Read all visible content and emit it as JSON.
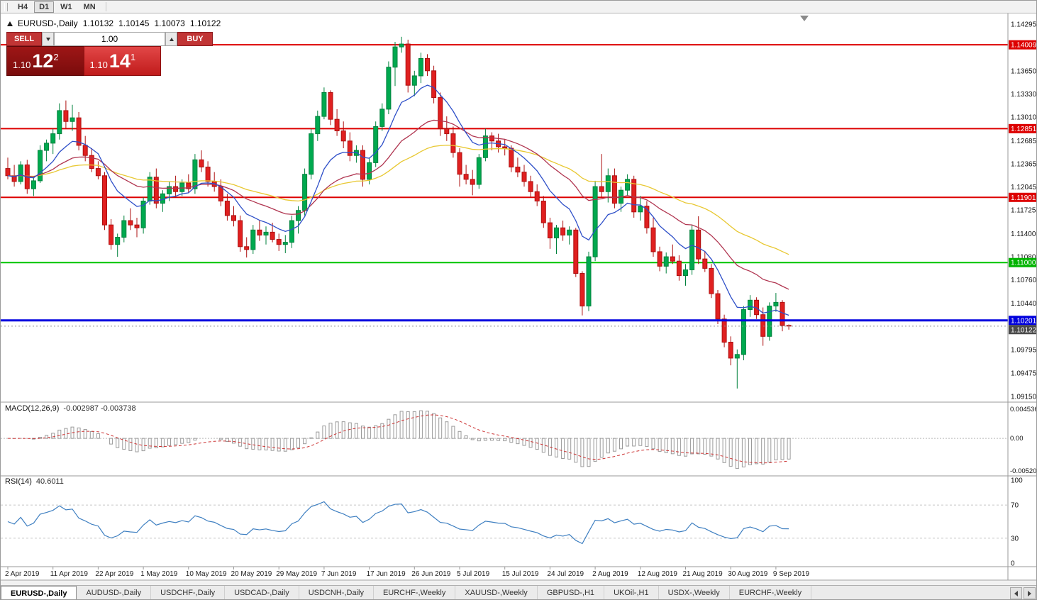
{
  "toolbar": {
    "timeframes": [
      "H4",
      "D1",
      "W1",
      "MN"
    ],
    "active": "D1"
  },
  "chart_header": {
    "title": "EURUSD-,Daily",
    "open": "1.10132",
    "high": "1.10145",
    "low": "1.10073",
    "close": "1.10122"
  },
  "one_click": {
    "sell_label": "SELL",
    "buy_label": "BUY",
    "volume": "1.00",
    "bid": {
      "whole": "1.10",
      "pips": "12",
      "frac": "2"
    },
    "ask": {
      "whole": "1.10",
      "pips": "14",
      "frac": "1"
    }
  },
  "price_axis": {
    "ticks": [
      "1.14295",
      "1.13650",
      "1.13330",
      "1.13010",
      "1.12685",
      "1.12365",
      "1.12045",
      "1.11725",
      "1.11400",
      "1.11080",
      "1.10760",
      "1.10440",
      "1.09795",
      "1.09475",
      "1.09150"
    ],
    "badges": [
      {
        "label": "1.14009",
        "color": "#DD0000"
      },
      {
        "label": "1.12851",
        "color": "#DD0000"
      },
      {
        "label": "1.11901",
        "color": "#DD0000"
      },
      {
        "label": "1.11000",
        "color": "#00B400"
      },
      {
        "label": "1.10201",
        "color": "#0000DD"
      },
      {
        "label": "1.10122",
        "color": "#4A4A4A"
      }
    ]
  },
  "indicators": {
    "macd": {
      "label": "MACD(12,26,9)",
      "values": "-0.002987 -0.003738",
      "axis_labels": [
        "0.004536",
        "0.00",
        "-0.005205"
      ]
    },
    "rsi": {
      "label": "RSI(14)",
      "value": "40.6011",
      "axis_labels": [
        "100",
        "70",
        "30",
        "0"
      ]
    }
  },
  "tabs": {
    "active_index": 0,
    "items": [
      "EURUSD-,Daily",
      "AUDUSD-,Daily",
      "USDCHF-,Daily",
      "USDCAD-,Daily",
      "USDCNH-,Daily",
      "EURCHF-,Weekly",
      "XAUUSD-,Weekly",
      "GBPUSD-,H1",
      "UKOil-,H1",
      "USDX-,Weekly",
      "EURCHF-,Weekly"
    ]
  },
  "chart_data": {
    "type": "candlestick",
    "symbol": "EURUSD-",
    "timeframe": "Daily",
    "y_range": [
      1.0915,
      1.14295
    ],
    "x_labels": [
      "2 Apr 2019",
      "11 Apr 2019",
      "22 Apr 2019",
      "1 May 2019",
      "10 May 2019",
      "20 May 2019",
      "29 May 2019",
      "7 Jun 2019",
      "17 Jun 2019",
      "26 Jun 2019",
      "5 Jul 2019",
      "15 Jul 2019",
      "24 Jul 2019",
      "2 Aug 2019",
      "12 Aug 2019",
      "21 Aug 2019",
      "30 Aug 2019",
      "9 Sep 2019"
    ],
    "x_label_indices": [
      0,
      7,
      14,
      21,
      28,
      35,
      42,
      49,
      56,
      63,
      70,
      77,
      84,
      91,
      98,
      105,
      112,
      119
    ],
    "candles": [
      [
        1.123,
        1.1245,
        1.1215,
        1.122
      ],
      [
        1.122,
        1.1235,
        1.1205,
        1.1212
      ],
      [
        1.1212,
        1.124,
        1.1208,
        1.1235
      ],
      [
        1.1235,
        1.1242,
        1.1195,
        1.1202
      ],
      [
        1.1202,
        1.1218,
        1.1192,
        1.1213
      ],
      [
        1.1213,
        1.1262,
        1.121,
        1.1255
      ],
      [
        1.1255,
        1.127,
        1.124,
        1.1265
      ],
      [
        1.1265,
        1.1285,
        1.125,
        1.1278
      ],
      [
        1.1278,
        1.132,
        1.127,
        1.131
      ],
      [
        1.131,
        1.1324,
        1.1285,
        1.1295
      ],
      [
        1.1295,
        1.1318,
        1.1282,
        1.13
      ],
      [
        1.13,
        1.1308,
        1.1255,
        1.1262
      ],
      [
        1.1262,
        1.1275,
        1.124,
        1.1248
      ],
      [
        1.1248,
        1.1258,
        1.1225,
        1.123
      ],
      [
        1.123,
        1.124,
        1.1215,
        1.122
      ],
      [
        1.122,
        1.1225,
        1.1145,
        1.1152
      ],
      [
        1.1152,
        1.116,
        1.1118,
        1.1125
      ],
      [
        1.1125,
        1.114,
        1.1108,
        1.1135
      ],
      [
        1.1135,
        1.1165,
        1.1128,
        1.1158
      ],
      [
        1.1158,
        1.1175,
        1.1145,
        1.1152
      ],
      [
        1.1152,
        1.1162,
        1.1135,
        1.1148
      ],
      [
        1.1148,
        1.119,
        1.114,
        1.1185
      ],
      [
        1.1185,
        1.1225,
        1.118,
        1.1218
      ],
      [
        1.1218,
        1.123,
        1.1175,
        1.1182
      ],
      [
        1.1182,
        1.12,
        1.117,
        1.1195
      ],
      [
        1.1195,
        1.1212,
        1.1185,
        1.1205
      ],
      [
        1.1205,
        1.122,
        1.119,
        1.1198
      ],
      [
        1.1198,
        1.1215,
        1.1192,
        1.121
      ],
      [
        1.121,
        1.1222,
        1.1196,
        1.1202
      ],
      [
        1.1202,
        1.125,
        1.1195,
        1.1242
      ],
      [
        1.1242,
        1.1255,
        1.1225,
        1.1232
      ],
      [
        1.1232,
        1.124,
        1.1205,
        1.1212
      ],
      [
        1.1212,
        1.1225,
        1.1198,
        1.1205
      ],
      [
        1.1205,
        1.1215,
        1.1178,
        1.1185
      ],
      [
        1.1185,
        1.1195,
        1.1158,
        1.1165
      ],
      [
        1.1165,
        1.1178,
        1.115,
        1.1158
      ],
      [
        1.1158,
        1.1165,
        1.1115,
        1.1122
      ],
      [
        1.1122,
        1.1135,
        1.1107,
        1.1118
      ],
      [
        1.1118,
        1.1152,
        1.1112,
        1.1145
      ],
      [
        1.1145,
        1.1158,
        1.113,
        1.1138
      ],
      [
        1.1138,
        1.115,
        1.1125,
        1.1142
      ],
      [
        1.1142,
        1.1155,
        1.1128,
        1.1132
      ],
      [
        1.1132,
        1.114,
        1.1116,
        1.1125
      ],
      [
        1.1125,
        1.1138,
        1.1113,
        1.1128
      ],
      [
        1.1128,
        1.1165,
        1.112,
        1.1158
      ],
      [
        1.1158,
        1.1178,
        1.114,
        1.1172
      ],
      [
        1.1172,
        1.123,
        1.1165,
        1.1222
      ],
      [
        1.1222,
        1.1285,
        1.1215,
        1.1278
      ],
      [
        1.1278,
        1.131,
        1.1268,
        1.1302
      ],
      [
        1.1302,
        1.1342,
        1.1298,
        1.1335
      ],
      [
        1.1335,
        1.1338,
        1.129,
        1.1298
      ],
      [
        1.1298,
        1.1312,
        1.1275,
        1.1282
      ],
      [
        1.1282,
        1.1295,
        1.1258,
        1.1268
      ],
      [
        1.1268,
        1.128,
        1.124,
        1.1248
      ],
      [
        1.1248,
        1.1262,
        1.1238,
        1.1255
      ],
      [
        1.1255,
        1.1262,
        1.1205,
        1.1215
      ],
      [
        1.1215,
        1.1245,
        1.1208,
        1.1238
      ],
      [
        1.1238,
        1.1295,
        1.1232,
        1.1288
      ],
      [
        1.1288,
        1.132,
        1.1282,
        1.1312
      ],
      [
        1.1312,
        1.1378,
        1.1305,
        1.137
      ],
      [
        1.137,
        1.1405,
        1.1344,
        1.1398
      ],
      [
        1.1398,
        1.1412,
        1.139,
        1.1402
      ],
      [
        1.1402,
        1.1408,
        1.1335,
        1.1345
      ],
      [
        1.1345,
        1.1365,
        1.133,
        1.1358
      ],
      [
        1.1358,
        1.139,
        1.1348,
        1.1382
      ],
      [
        1.1382,
        1.1388,
        1.1358,
        1.1365
      ],
      [
        1.1365,
        1.1372,
        1.132,
        1.1328
      ],
      [
        1.1328,
        1.1335,
        1.1275,
        1.1285
      ],
      [
        1.1285,
        1.1302,
        1.1268,
        1.1278
      ],
      [
        1.1278,
        1.1288,
        1.1245,
        1.1252
      ],
      [
        1.1252,
        1.1258,
        1.1205,
        1.1222
      ],
      [
        1.1222,
        1.1235,
        1.1208,
        1.1215
      ],
      [
        1.1215,
        1.1228,
        1.1193,
        1.1208
      ],
      [
        1.1208,
        1.125,
        1.1202,
        1.1245
      ],
      [
        1.1245,
        1.1285,
        1.124,
        1.1275
      ],
      [
        1.1275,
        1.128,
        1.1255,
        1.1268
      ],
      [
        1.1268,
        1.1278,
        1.1252,
        1.126
      ],
      [
        1.126,
        1.127,
        1.1248,
        1.1258
      ],
      [
        1.1258,
        1.1262,
        1.1225,
        1.1232
      ],
      [
        1.1232,
        1.1245,
        1.1218,
        1.1225
      ],
      [
        1.1225,
        1.1235,
        1.1205,
        1.1212
      ],
      [
        1.1212,
        1.122,
        1.119,
        1.1198
      ],
      [
        1.1198,
        1.1208,
        1.1178,
        1.1185
      ],
      [
        1.1185,
        1.1192,
        1.1148,
        1.1155
      ],
      [
        1.1155,
        1.1162,
        1.1119,
        1.1134
      ],
      [
        1.1134,
        1.1152,
        1.1112,
        1.1148
      ],
      [
        1.1148,
        1.1158,
        1.113,
        1.1138
      ],
      [
        1.1138,
        1.115,
        1.1125,
        1.1145
      ],
      [
        1.1145,
        1.1148,
        1.108,
        1.1085
      ],
      [
        1.1085,
        1.1088,
        1.1027,
        1.104
      ],
      [
        1.104,
        1.1115,
        1.1033,
        1.1108
      ],
      [
        1.1108,
        1.1213,
        1.1102,
        1.1205
      ],
      [
        1.1205,
        1.125,
        1.119,
        1.1198
      ],
      [
        1.1198,
        1.123,
        1.1183,
        1.122
      ],
      [
        1.122,
        1.123,
        1.1175,
        1.1182
      ],
      [
        1.1182,
        1.1205,
        1.117,
        1.12
      ],
      [
        1.12,
        1.1222,
        1.1192,
        1.1215
      ],
      [
        1.1215,
        1.122,
        1.1162,
        1.117
      ],
      [
        1.117,
        1.1192,
        1.1158,
        1.1178
      ],
      [
        1.1178,
        1.1185,
        1.114,
        1.1148
      ],
      [
        1.1148,
        1.1162,
        1.1108,
        1.1115
      ],
      [
        1.1115,
        1.1122,
        1.1088,
        1.1095
      ],
      [
        1.1095,
        1.1114,
        1.1085,
        1.1108
      ],
      [
        1.1108,
        1.1125,
        1.1098,
        1.1102
      ],
      [
        1.1102,
        1.111,
        1.1075,
        1.1082
      ],
      [
        1.1082,
        1.1098,
        1.1068,
        1.109
      ],
      [
        1.109,
        1.1152,
        1.1083,
        1.1145
      ],
      [
        1.1145,
        1.1164,
        1.1098,
        1.1105
      ],
      [
        1.1105,
        1.1116,
        1.1087,
        1.1092
      ],
      [
        1.1092,
        1.1098,
        1.1051,
        1.1057
      ],
      [
        1.1057,
        1.1062,
        1.1015,
        1.1022
      ],
      [
        1.1022,
        1.1028,
        1.0983,
        1.099
      ],
      [
        1.099,
        1.0998,
        1.0958,
        1.0968
      ],
      [
        1.0968,
        1.098,
        1.0926,
        1.0973
      ],
      [
        1.0973,
        1.104,
        1.0965,
        1.1035
      ],
      [
        1.1035,
        1.1055,
        1.1025,
        1.1048
      ],
      [
        1.1048,
        1.1052,
        1.1022,
        1.1028
      ],
      [
        1.1028,
        1.1038,
        1.0985,
        1.0998
      ],
      [
        1.0998,
        1.1045,
        1.0992,
        1.104
      ],
      [
        1.104,
        1.1058,
        1.1032,
        1.1045
      ],
      [
        1.1045,
        1.1048,
        1.1005,
        1.1013
      ],
      [
        1.10132,
        1.10145,
        1.10073,
        1.10122
      ]
    ],
    "moving_averages": [
      {
        "period": 10,
        "method": "ema",
        "color": "#2E4FC8"
      },
      {
        "period": 25,
        "method": "ema",
        "color": "#B03550"
      },
      {
        "period": 50,
        "method": "ema",
        "color": "#E8C832"
      }
    ],
    "horizontal_lines": [
      {
        "value": 1.14009,
        "color": "#DD0000",
        "width": 2,
        "style": "solid"
      },
      {
        "value": 1.12851,
        "color": "#DD0000",
        "width": 2,
        "style": "solid"
      },
      {
        "value": 1.11901,
        "color": "#DD0000",
        "width": 2,
        "style": "solid"
      },
      {
        "value": 1.11,
        "color": "#00C400",
        "width": 2,
        "style": "solid"
      },
      {
        "value": 1.10201,
        "color": "#0000E0",
        "width": 3,
        "style": "solid"
      },
      {
        "value": 1.10122,
        "color": "#909090",
        "width": 1,
        "style": "dotted"
      }
    ],
    "macd": {
      "fast": 12,
      "slow": 26,
      "signal": 9,
      "current_macd": -0.002987,
      "current_signal": -0.003738,
      "axis_max": 0.004536,
      "axis_min": -0.005205
    },
    "rsi": {
      "period": 14,
      "current": 40.6011,
      "levels": [
        30,
        70
      ]
    }
  }
}
